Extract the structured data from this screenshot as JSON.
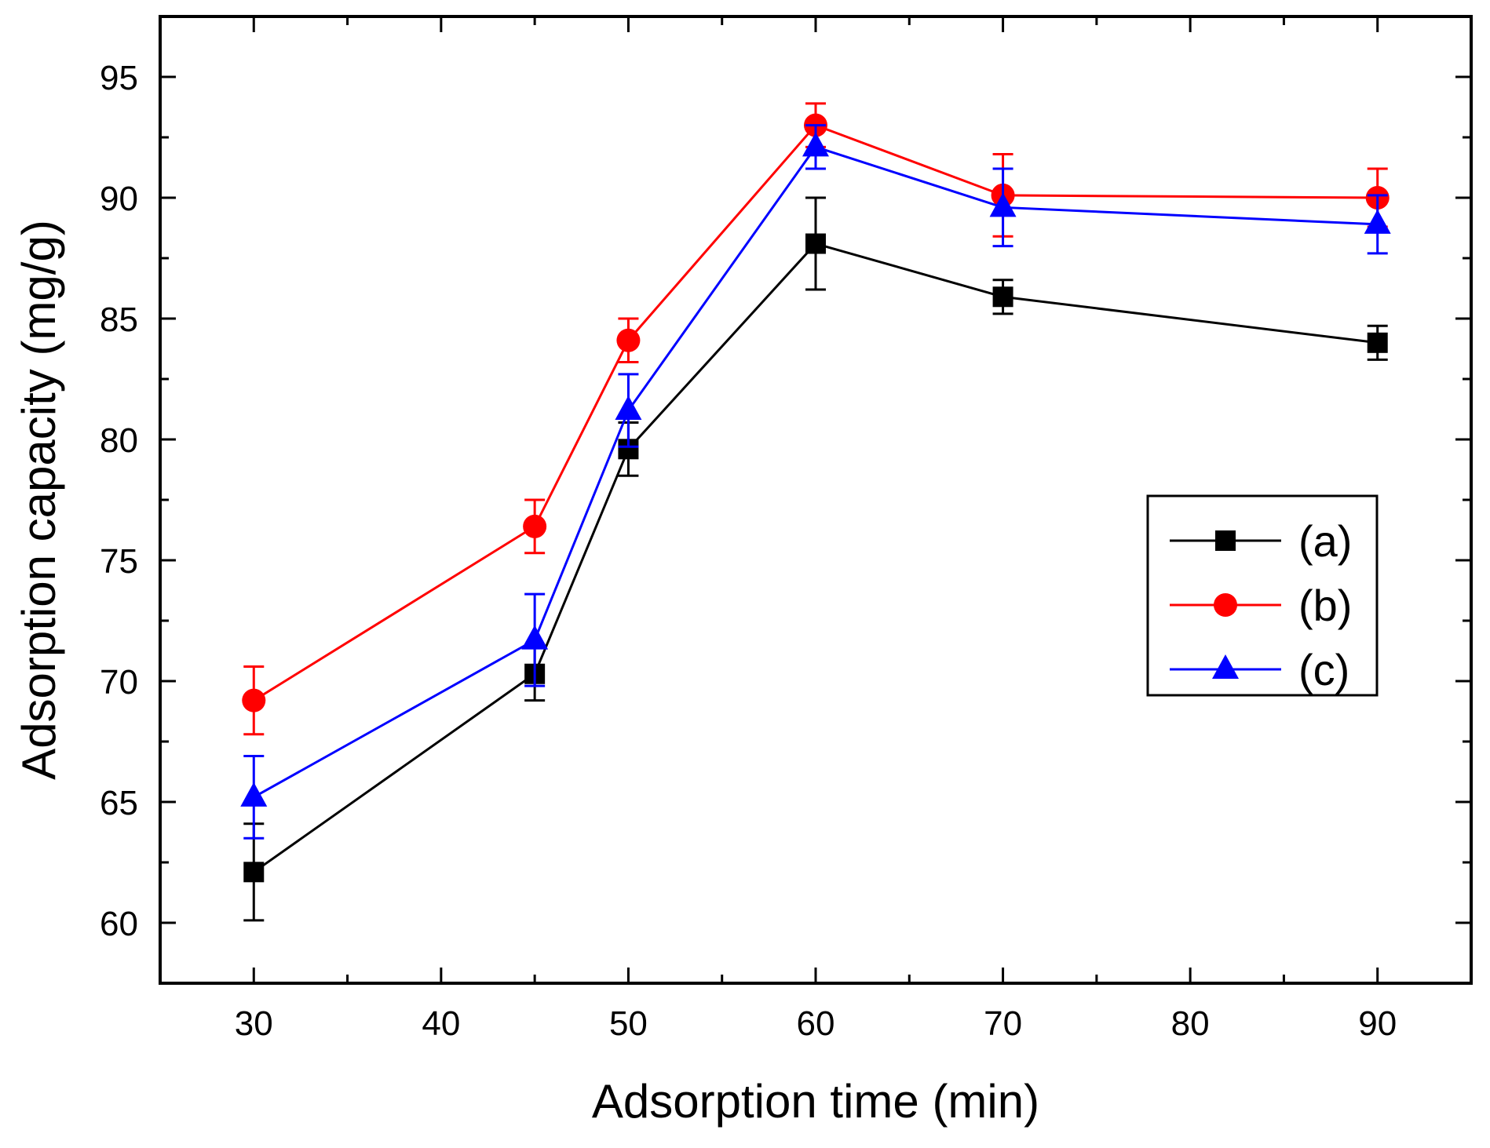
{
  "chart_data": {
    "type": "line",
    "title": "",
    "xlabel": "Adsorption time (min)",
    "ylabel": "Adsorption capacity (mg/g)",
    "xlim": [
      25,
      95
    ],
    "ylim": [
      57.5,
      97.5
    ],
    "x_ticks": [
      30,
      40,
      50,
      60,
      70,
      80,
      90
    ],
    "y_ticks": [
      60,
      65,
      70,
      75,
      80,
      85,
      90,
      95
    ],
    "x_tick_labels": [
      "30",
      "40",
      "50",
      "60",
      "70",
      "80",
      "90"
    ],
    "y_tick_labels": [
      "60",
      "65",
      "70",
      "75",
      "80",
      "85",
      "90",
      "95"
    ],
    "x": [
      30,
      45,
      50,
      60,
      70,
      90
    ],
    "grid": false,
    "legend_position": "right",
    "series": [
      {
        "name": "(a)",
        "color": "#000000",
        "marker": "square",
        "values": [
          62.1,
          70.3,
          79.6,
          88.1,
          85.9,
          84.0
        ],
        "errors": [
          2.0,
          1.1,
          1.1,
          1.9,
          0.7,
          0.7
        ]
      },
      {
        "name": "(b)",
        "color": "#ff0000",
        "marker": "circle",
        "values": [
          69.2,
          76.4,
          84.1,
          93.0,
          90.1,
          90.0
        ],
        "errors": [
          1.4,
          1.1,
          0.9,
          0.9,
          1.7,
          1.2
        ]
      },
      {
        "name": "(c)",
        "color": "#0000ff",
        "marker": "triangle",
        "values": [
          65.2,
          71.7,
          81.2,
          92.1,
          89.6,
          88.9
        ],
        "errors": [
          1.7,
          1.9,
          1.5,
          0.9,
          1.6,
          1.2
        ]
      }
    ]
  }
}
